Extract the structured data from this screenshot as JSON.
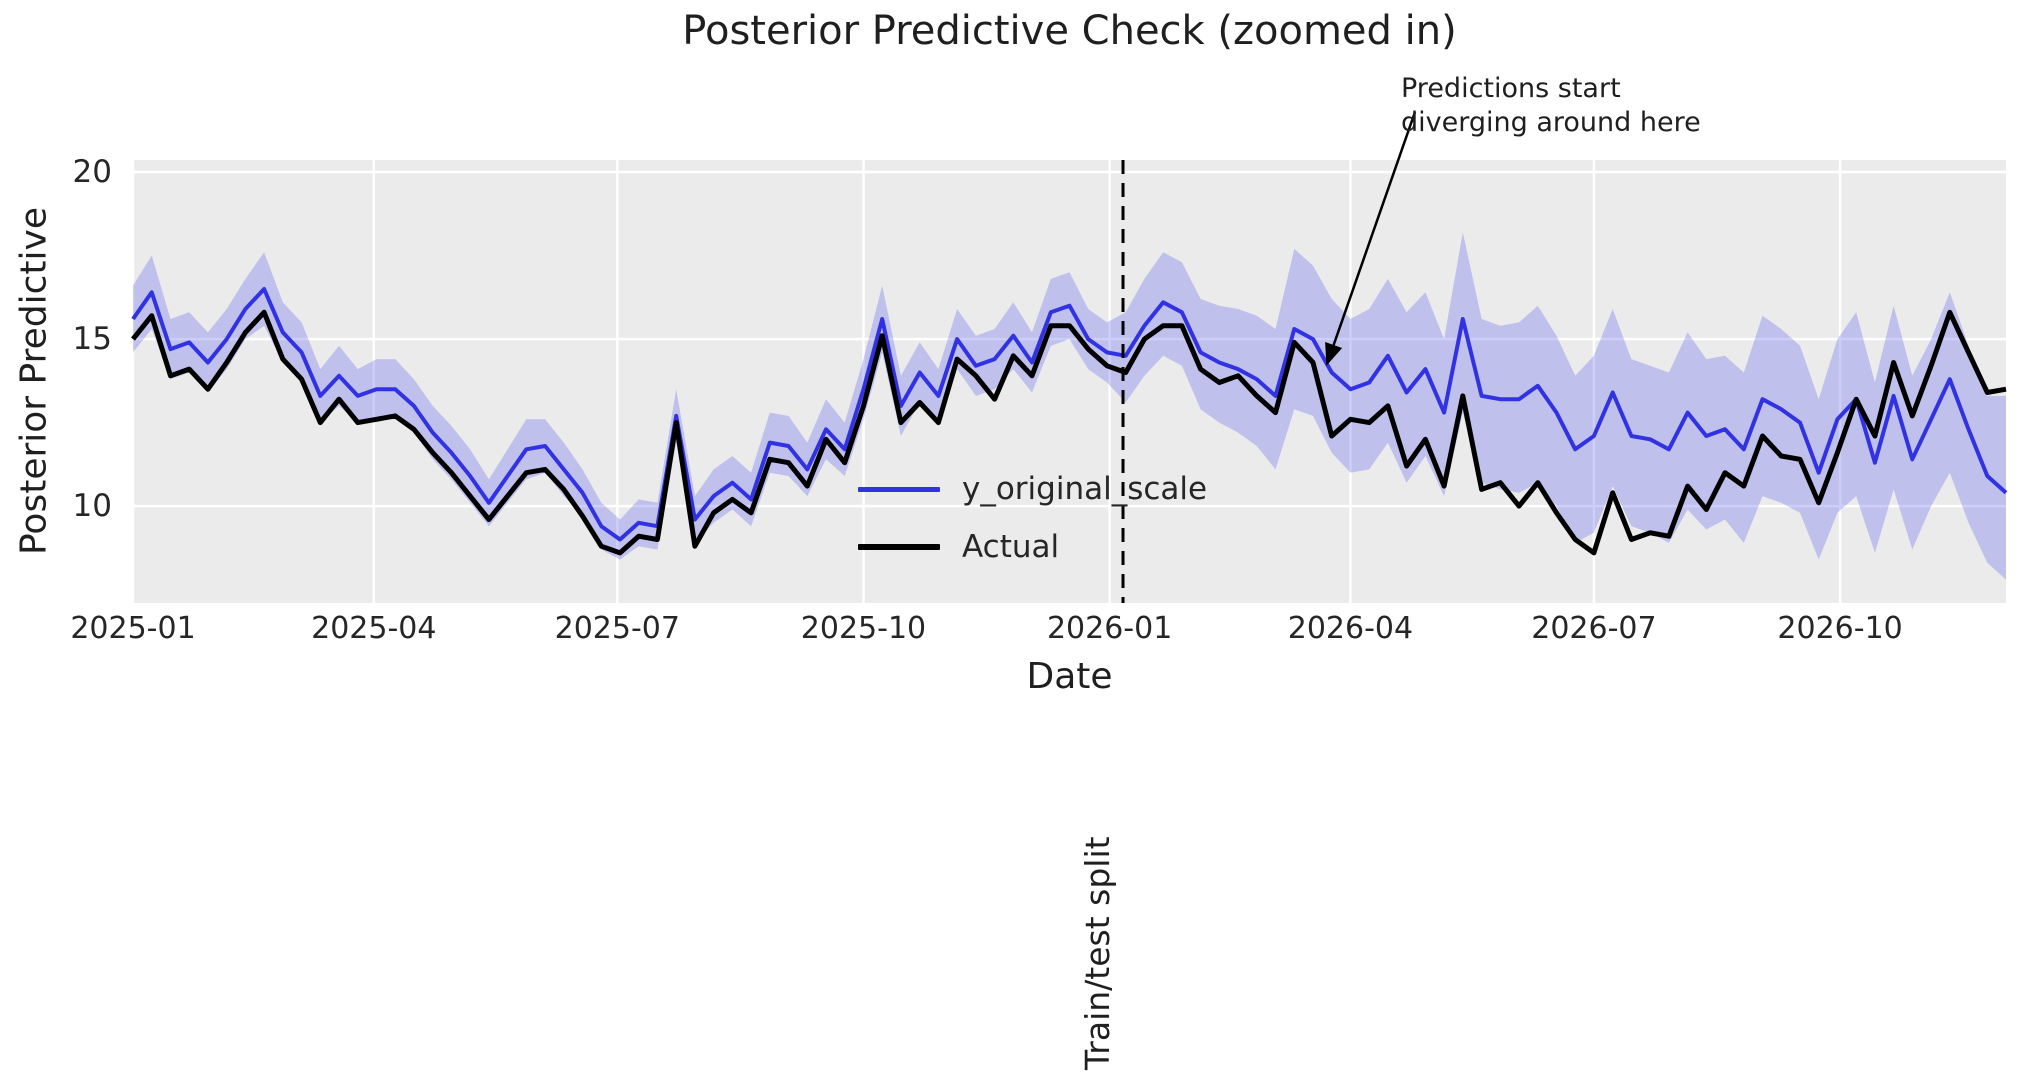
{
  "chart_data": {
    "type": "line",
    "title": "Posterior Predictive Check (zoomed in)",
    "xlabel": "Date",
    "ylabel": "Posterior Predictive",
    "grid": true,
    "plot_bg": "#ebebeb",
    "grid_color": "#ffffff",
    "x_start_date": "2025-01-01",
    "x_step_days": 7,
    "x_tick_labels": [
      "2025-01",
      "2025-04",
      "2025-07",
      "2025-10",
      "2026-01",
      "2026-04",
      "2026-07",
      "2026-10"
    ],
    "y_ticks": [
      10,
      15,
      20
    ],
    "ylim": [
      7.1,
      20.36
    ],
    "legend_position": "center",
    "series": [
      {
        "name": "y_original_scale",
        "color": "#3132e2",
        "values": [
          15.6,
          16.4,
          14.7,
          14.9,
          14.3,
          15.0,
          15.9,
          16.5,
          15.2,
          14.6,
          13.3,
          13.9,
          13.3,
          13.5,
          13.5,
          13.0,
          12.2,
          11.6,
          10.9,
          10.1,
          10.9,
          11.7,
          11.8,
          11.1,
          10.4,
          9.4,
          9.0,
          9.5,
          9.4,
          12.7,
          9.6,
          10.3,
          10.7,
          10.2,
          11.9,
          11.8,
          11.1,
          12.3,
          11.7,
          13.5,
          15.6,
          13.0,
          14.0,
          13.3,
          15.0,
          14.2,
          14.4,
          15.1,
          14.3,
          15.8,
          16.0,
          15.0,
          14.6,
          14.5,
          15.4,
          16.1,
          15.8,
          14.6,
          14.3,
          14.1,
          13.8,
          13.3,
          15.3,
          15.0,
          14.0,
          13.5,
          13.7,
          14.5,
          13.4,
          14.1,
          12.8,
          15.6,
          13.3,
          13.2,
          13.2,
          13.6,
          12.8,
          11.7,
          12.1,
          13.4,
          12.1,
          12.0,
          11.7,
          12.8,
          12.1,
          12.3,
          11.7,
          13.2,
          12.9,
          12.5,
          11.0,
          12.6,
          13.2,
          11.3,
          13.3,
          11.4,
          12.6,
          13.8,
          12.3,
          10.9,
          10.4
        ]
      },
      {
        "name": "Actual",
        "color": "#000000",
        "values": [
          15.0,
          15.7,
          13.9,
          14.1,
          13.5,
          14.3,
          15.2,
          15.8,
          14.4,
          13.8,
          12.5,
          13.2,
          12.5,
          12.6,
          12.7,
          12.3,
          11.6,
          11.0,
          10.3,
          9.6,
          10.3,
          11.0,
          11.1,
          10.5,
          9.7,
          8.8,
          8.6,
          9.1,
          9.0,
          12.5,
          8.8,
          9.8,
          10.2,
          9.8,
          11.4,
          11.3,
          10.6,
          12.0,
          11.3,
          13.0,
          15.1,
          12.5,
          13.1,
          12.5,
          14.4,
          13.9,
          13.2,
          14.5,
          13.9,
          15.4,
          15.4,
          14.7,
          14.2,
          14.0,
          15.0,
          15.4,
          15.4,
          14.1,
          13.7,
          13.9,
          13.3,
          12.8,
          14.9,
          14.3,
          12.1,
          12.6,
          12.5,
          13.0,
          11.2,
          12.0,
          10.6,
          13.3,
          10.5,
          10.7,
          10.0,
          10.7,
          9.8,
          9.0,
          8.6,
          10.4,
          9.0,
          9.2,
          9.1,
          10.6,
          9.9,
          11.0,
          10.6,
          12.1,
          11.5,
          11.4,
          10.1,
          11.6,
          13.2,
          12.1,
          14.3,
          12.7,
          14.2,
          15.8,
          14.6,
          13.4,
          13.5
        ]
      }
    ],
    "band": {
      "for_series": "y_original_scale",
      "color": "rgba(100,102,235,0.32)",
      "upper": [
        16.6,
        17.5,
        15.6,
        15.8,
        15.2,
        15.9,
        16.8,
        17.6,
        16.1,
        15.5,
        14.1,
        14.8,
        14.1,
        14.4,
        14.4,
        13.8,
        13.0,
        12.4,
        11.7,
        10.8,
        11.7,
        12.6,
        12.6,
        11.9,
        11.1,
        10.1,
        9.6,
        10.2,
        10.1,
        13.5,
        10.3,
        11.1,
        11.5,
        11.0,
        12.8,
        12.7,
        11.9,
        13.2,
        12.5,
        14.4,
        16.6,
        13.9,
        14.9,
        14.1,
        15.9,
        15.1,
        15.3,
        16.1,
        15.2,
        16.8,
        17.0,
        15.9,
        15.5,
        15.8,
        16.8,
        17.6,
        17.3,
        16.2,
        16.0,
        15.9,
        15.7,
        15.3,
        17.7,
        17.2,
        16.2,
        15.6,
        15.9,
        16.8,
        15.8,
        16.4,
        15.0,
        18.2,
        15.6,
        15.4,
        15.5,
        16.0,
        15.1,
        13.9,
        14.5,
        15.9,
        14.4,
        14.2,
        14.0,
        15.2,
        14.4,
        14.5,
        14.0,
        15.7,
        15.3,
        14.8,
        13.2,
        15.0,
        15.8,
        13.7,
        16.0,
        13.9,
        15.0,
        16.4,
        14.8,
        13.3,
        13.3
      ],
      "lower": [
        14.6,
        15.3,
        13.8,
        14.0,
        13.4,
        14.1,
        15.0,
        15.4,
        14.3,
        13.7,
        12.5,
        13.0,
        12.5,
        12.6,
        12.6,
        12.2,
        11.4,
        10.8,
        10.1,
        9.4,
        10.1,
        10.8,
        11.0,
        10.3,
        9.7,
        8.7,
        8.4,
        8.8,
        8.7,
        11.9,
        8.9,
        9.5,
        9.9,
        9.4,
        11.0,
        10.9,
        10.3,
        11.4,
        10.9,
        12.6,
        14.6,
        12.1,
        13.1,
        12.5,
        14.1,
        13.3,
        13.5,
        14.1,
        13.4,
        14.8,
        15.0,
        14.1,
        13.7,
        13.1,
        13.9,
        14.5,
        14.2,
        12.9,
        12.5,
        12.2,
        11.8,
        11.1,
        12.9,
        12.7,
        11.6,
        11.0,
        11.1,
        11.9,
        10.7,
        11.5,
        10.3,
        12.8,
        10.7,
        10.5,
        10.4,
        10.7,
        10.0,
        8.9,
        9.2,
        10.6,
        9.4,
        9.2,
        8.9,
        9.9,
        9.3,
        9.6,
        8.9,
        10.3,
        10.1,
        9.8,
        8.4,
        9.8,
        10.3,
        8.6,
        10.5,
        8.7,
        10.0,
        11.0,
        9.5,
        8.3,
        7.8
      ]
    },
    "split_line": {
      "date": "2026-01-06",
      "label": "Train/test split",
      "style": "dashed",
      "color": "#000000"
    },
    "annotation": {
      "lines": [
        "Predictions start",
        "diverging around here"
      ],
      "arrow_tip_date": "2026-03-23",
      "arrow_tip_value": 14.2,
      "color": "#000000"
    }
  }
}
